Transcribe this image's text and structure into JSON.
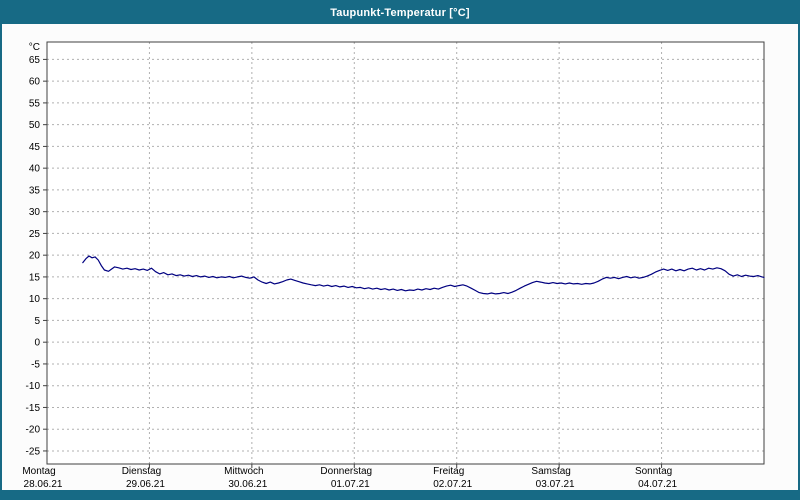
{
  "window": {
    "title": "Taupunkt-Temperatur [°C]"
  },
  "colors": {
    "titlebar": "#176a85",
    "line": "#000080",
    "grid": "#b0b0b0",
    "plot_border": "#404040",
    "plot_background": "#ffffff",
    "label": "#000000"
  },
  "chart_data": {
    "type": "line",
    "title": "Taupunkt-Temperatur [°C]",
    "ylabel": "°C",
    "xlabel": "",
    "ylim": [
      -28,
      69
    ],
    "yticks": [
      -25,
      -20,
      -15,
      -10,
      -5,
      0,
      5,
      10,
      15,
      20,
      25,
      30,
      35,
      40,
      45,
      50,
      55,
      60,
      65
    ],
    "x_days_total": 7,
    "grid": "dashed",
    "legend_position": "none",
    "x_days": [
      {
        "name": "Montag",
        "date": "28.06.21"
      },
      {
        "name": "Dienstag",
        "date": "29.06.21"
      },
      {
        "name": "Mittwoch",
        "date": "30.06.21"
      },
      {
        "name": "Donnerstag",
        "date": "01.07.21"
      },
      {
        "name": "Freitag",
        "date": "02.07.21"
      },
      {
        "name": "Samstag",
        "date": "03.07.21"
      },
      {
        "name": "Sonntag",
        "date": "04.07.21"
      }
    ],
    "series": [
      {
        "name": "Taupunkt",
        "color": "#000080",
        "points": [
          [
            0.35,
            18.3
          ],
          [
            0.38,
            19.2
          ],
          [
            0.41,
            19.8
          ],
          [
            0.44,
            19.4
          ],
          [
            0.47,
            19.6
          ],
          [
            0.5,
            18.9
          ],
          [
            0.53,
            17.6
          ],
          [
            0.56,
            16.6
          ],
          [
            0.6,
            16.3
          ],
          [
            0.63,
            16.8
          ],
          [
            0.66,
            17.3
          ],
          [
            0.7,
            17.1
          ],
          [
            0.74,
            16.8
          ],
          [
            0.78,
            17.0
          ],
          [
            0.82,
            16.7
          ],
          [
            0.86,
            16.9
          ],
          [
            0.9,
            16.6
          ],
          [
            0.94,
            16.8
          ],
          [
            0.98,
            16.5
          ],
          [
            1.02,
            17.0
          ],
          [
            1.06,
            16.2
          ],
          [
            1.1,
            15.7
          ],
          [
            1.14,
            16.0
          ],
          [
            1.18,
            15.5
          ],
          [
            1.22,
            15.7
          ],
          [
            1.26,
            15.3
          ],
          [
            1.3,
            15.5
          ],
          [
            1.34,
            15.2
          ],
          [
            1.38,
            15.4
          ],
          [
            1.42,
            15.1
          ],
          [
            1.46,
            15.3
          ],
          [
            1.5,
            15.0
          ],
          [
            1.54,
            15.2
          ],
          [
            1.58,
            14.9
          ],
          [
            1.62,
            15.1
          ],
          [
            1.66,
            14.8
          ],
          [
            1.7,
            15.0
          ],
          [
            1.74,
            14.9
          ],
          [
            1.78,
            15.1
          ],
          [
            1.82,
            14.8
          ],
          [
            1.86,
            15.0
          ],
          [
            1.9,
            15.2
          ],
          [
            1.94,
            14.9
          ],
          [
            1.98,
            14.7
          ],
          [
            2.02,
            15.0
          ],
          [
            2.06,
            14.3
          ],
          [
            2.1,
            13.8
          ],
          [
            2.14,
            13.5
          ],
          [
            2.18,
            13.8
          ],
          [
            2.22,
            13.4
          ],
          [
            2.26,
            13.6
          ],
          [
            2.3,
            13.9
          ],
          [
            2.34,
            14.3
          ],
          [
            2.38,
            14.5
          ],
          [
            2.42,
            14.2
          ],
          [
            2.46,
            13.9
          ],
          [
            2.5,
            13.6
          ],
          [
            2.54,
            13.4
          ],
          [
            2.58,
            13.2
          ],
          [
            2.62,
            13.0
          ],
          [
            2.66,
            13.2
          ],
          [
            2.7,
            12.9
          ],
          [
            2.74,
            13.1
          ],
          [
            2.78,
            12.8
          ],
          [
            2.82,
            13.0
          ],
          [
            2.86,
            12.7
          ],
          [
            2.9,
            12.9
          ],
          [
            2.94,
            12.6
          ],
          [
            2.98,
            12.8
          ],
          [
            3.02,
            12.5
          ],
          [
            3.06,
            12.6
          ],
          [
            3.1,
            12.3
          ],
          [
            3.14,
            12.5
          ],
          [
            3.18,
            12.2
          ],
          [
            3.22,
            12.4
          ],
          [
            3.26,
            12.1
          ],
          [
            3.3,
            12.3
          ],
          [
            3.34,
            12.0
          ],
          [
            3.38,
            12.2
          ],
          [
            3.42,
            11.9
          ],
          [
            3.46,
            12.1
          ],
          [
            3.5,
            11.8
          ],
          [
            3.54,
            12.0
          ],
          [
            3.58,
            11.9
          ],
          [
            3.62,
            12.2
          ],
          [
            3.66,
            12.0
          ],
          [
            3.7,
            12.3
          ],
          [
            3.74,
            12.1
          ],
          [
            3.78,
            12.4
          ],
          [
            3.82,
            12.2
          ],
          [
            3.86,
            12.6
          ],
          [
            3.9,
            12.9
          ],
          [
            3.94,
            13.1
          ],
          [
            3.98,
            12.8
          ],
          [
            4.02,
            13.0
          ],
          [
            4.06,
            13.2
          ],
          [
            4.1,
            12.9
          ],
          [
            4.14,
            12.4
          ],
          [
            4.18,
            11.9
          ],
          [
            4.22,
            11.4
          ],
          [
            4.26,
            11.2
          ],
          [
            4.3,
            11.1
          ],
          [
            4.34,
            11.3
          ],
          [
            4.38,
            11.1
          ],
          [
            4.42,
            11.2
          ],
          [
            4.46,
            11.4
          ],
          [
            4.5,
            11.2
          ],
          [
            4.54,
            11.5
          ],
          [
            4.58,
            11.9
          ],
          [
            4.62,
            12.4
          ],
          [
            4.66,
            12.9
          ],
          [
            4.7,
            13.3
          ],
          [
            4.74,
            13.7
          ],
          [
            4.78,
            14.0
          ],
          [
            4.82,
            13.8
          ],
          [
            4.86,
            13.6
          ],
          [
            4.9,
            13.5
          ],
          [
            4.94,
            13.7
          ],
          [
            4.98,
            13.5
          ],
          [
            5.02,
            13.6
          ],
          [
            5.06,
            13.4
          ],
          [
            5.1,
            13.6
          ],
          [
            5.14,
            13.4
          ],
          [
            5.18,
            13.5
          ],
          [
            5.22,
            13.3
          ],
          [
            5.26,
            13.5
          ],
          [
            5.3,
            13.4
          ],
          [
            5.34,
            13.6
          ],
          [
            5.38,
            14.0
          ],
          [
            5.42,
            14.5
          ],
          [
            5.46,
            14.9
          ],
          [
            5.5,
            14.7
          ],
          [
            5.54,
            14.9
          ],
          [
            5.58,
            14.6
          ],
          [
            5.62,
            14.9
          ],
          [
            5.66,
            15.1
          ],
          [
            5.7,
            14.8
          ],
          [
            5.74,
            15.0
          ],
          [
            5.78,
            14.7
          ],
          [
            5.82,
            14.9
          ],
          [
            5.86,
            15.2
          ],
          [
            5.9,
            15.6
          ],
          [
            5.94,
            16.1
          ],
          [
            5.98,
            16.5
          ],
          [
            6.02,
            16.8
          ],
          [
            6.06,
            16.5
          ],
          [
            6.1,
            16.8
          ],
          [
            6.14,
            16.4
          ],
          [
            6.18,
            16.7
          ],
          [
            6.22,
            16.4
          ],
          [
            6.26,
            16.8
          ],
          [
            6.3,
            17.0
          ],
          [
            6.34,
            16.6
          ],
          [
            6.38,
            16.9
          ],
          [
            6.42,
            16.6
          ],
          [
            6.46,
            17.0
          ],
          [
            6.5,
            16.8
          ],
          [
            6.54,
            17.1
          ],
          [
            6.58,
            16.9
          ],
          [
            6.62,
            16.4
          ],
          [
            6.66,
            15.6
          ],
          [
            6.7,
            15.2
          ],
          [
            6.74,
            15.5
          ],
          [
            6.78,
            15.1
          ],
          [
            6.82,
            15.4
          ],
          [
            6.86,
            15.2
          ],
          [
            6.9,
            15.1
          ],
          [
            6.94,
            15.3
          ],
          [
            6.98,
            15.0
          ],
          [
            7.0,
            14.9
          ]
        ]
      }
    ]
  }
}
